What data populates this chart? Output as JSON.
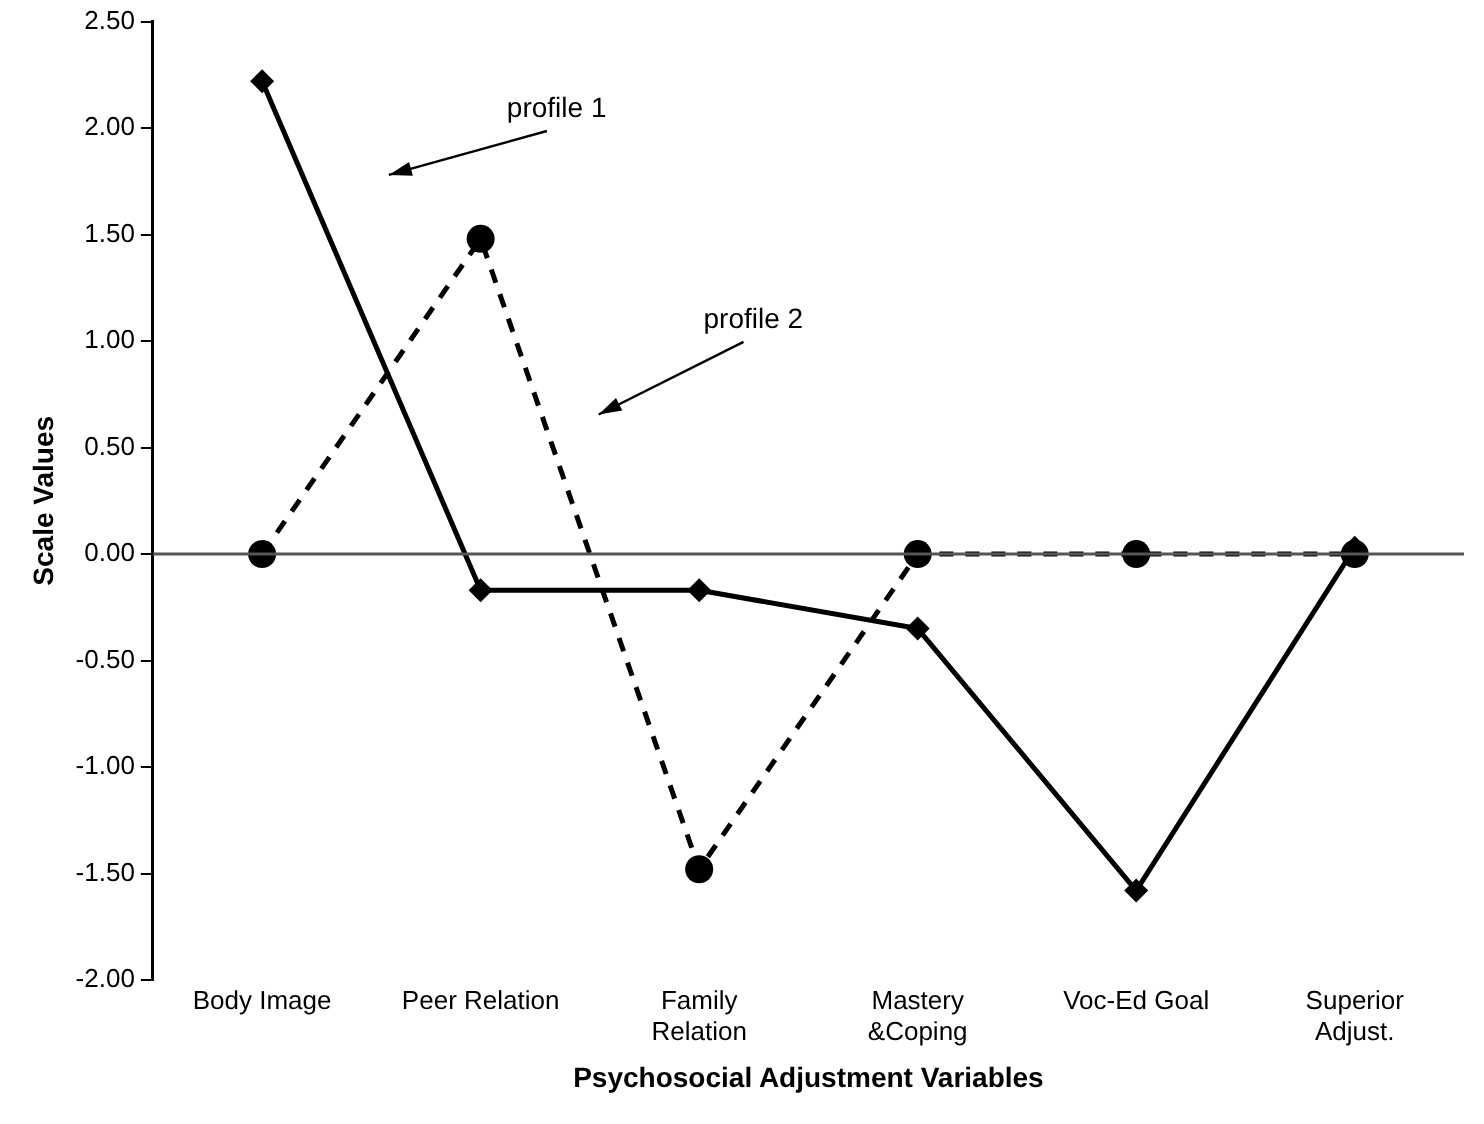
{
  "chart_data": {
    "type": "line",
    "xlabel": "Psychosocial Adjustment Variables",
    "ylabel": "Scale Values",
    "categories": [
      "Body Image",
      "Peer Relation",
      "Family\nRelation",
      "Mastery\n&Coping",
      "Voc-Ed Goal",
      "Superior\nAdjust."
    ],
    "series": [
      {
        "color": "#000000",
        "marker": "diamond",
        "line_style": "solid",
        "values": [
          2.22,
          -0.17,
          -0.17,
          -0.35,
          -1.58,
          0.03
        ]
      },
      {
        "color": "#000000",
        "marker": "circle",
        "line_style": "dashed",
        "values": [
          0,
          1.48,
          -1.48,
          0,
          0,
          0
        ]
      }
    ],
    "ylim": [
      -2,
      2.5
    ],
    "yticks": [
      {
        "value": -2,
        "label": "-2.00"
      },
      {
        "value": -1.5,
        "label": "-1.50"
      },
      {
        "value": -1,
        "label": "-1.00"
      },
      {
        "value": -0.5,
        "label": "-0.50"
      },
      {
        "value": 0,
        "label": "0.00"
      },
      {
        "value": 0.5,
        "label": "0.50"
      },
      {
        "value": 1,
        "label": "1.00"
      },
      {
        "value": 1.5,
        "label": "1.50"
      },
      {
        "value": 2,
        "label": "2.00"
      },
      {
        "value": 2.5,
        "label": "2.50"
      }
    ],
    "ref_lines": [
      {
        "axis": "y",
        "value": 0,
        "color": "#555555"
      }
    ],
    "annotations": [
      "profile 1",
      "profile 2"
    ],
    "grid": false,
    "legend": false
  }
}
